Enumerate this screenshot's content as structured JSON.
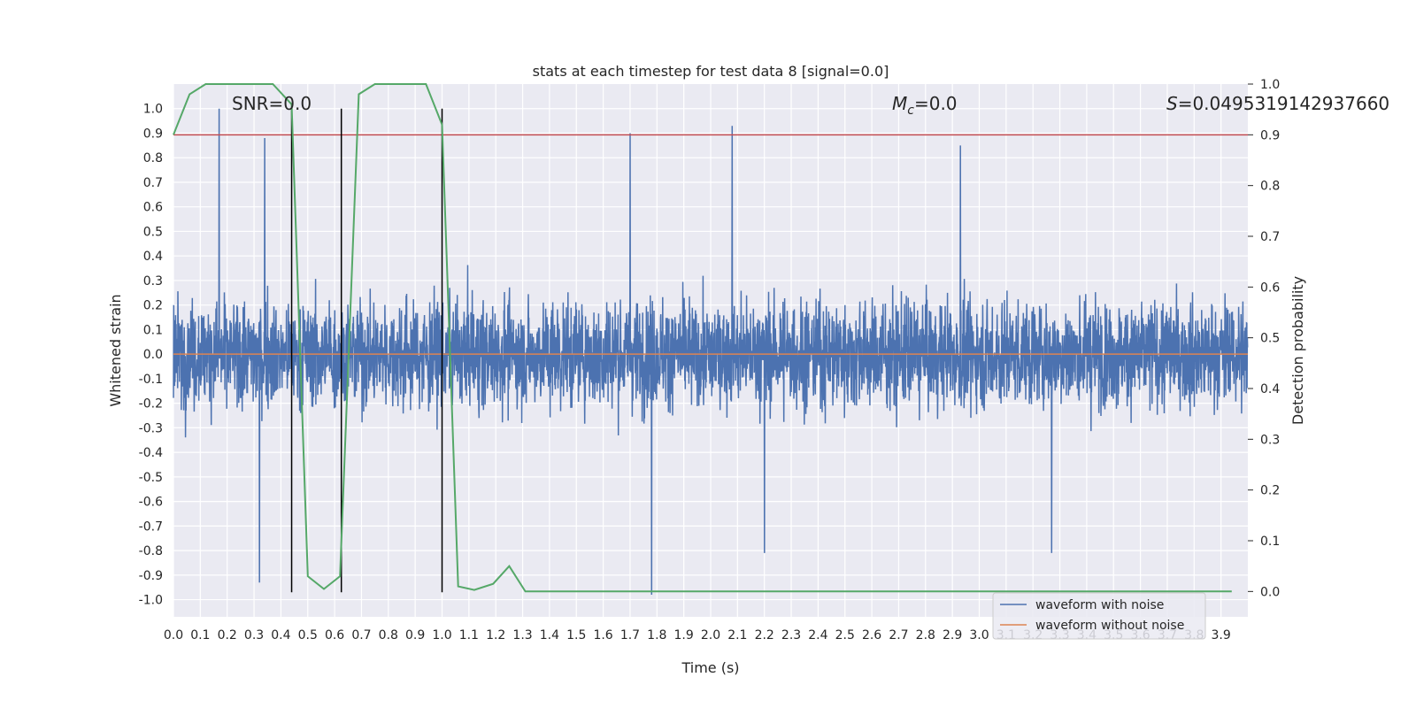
{
  "chart_data": {
    "type": "line",
    "title": "stats at each timestep for test data 8 [signal=0.0]",
    "xlabel": "Time (s)",
    "ylabel": "Whitened strain",
    "y2label": "Detection probability",
    "xlim": [
      0.0,
      4.0
    ],
    "ylim": [
      -1.07,
      1.1
    ],
    "y2lim": [
      -0.05,
      1.0
    ],
    "grid": true,
    "legend_position": "lower-right",
    "x_ticks": [
      "0.0",
      "0.1",
      "0.2",
      "0.3",
      "0.4",
      "0.5",
      "0.6",
      "0.7",
      "0.8",
      "0.9",
      "1.0",
      "1.1",
      "1.2",
      "1.3",
      "1.4",
      "1.5",
      "1.6",
      "1.7",
      "1.8",
      "1.9",
      "2.0",
      "2.1",
      "2.2",
      "2.3",
      "2.4",
      "2.5",
      "2.6",
      "2.7",
      "2.8",
      "2.9",
      "3.0",
      "3.1",
      "3.2",
      "3.3",
      "3.4",
      "3.5",
      "3.6",
      "3.7",
      "3.8",
      "3.9"
    ],
    "y_ticks": [
      "1.0",
      "0.9",
      "0.8",
      "0.7",
      "0.6",
      "0.5",
      "0.4",
      "0.3",
      "0.2",
      "0.1",
      "0.0",
      "-0.1",
      "-0.2",
      "-0.3",
      "-0.4",
      "-0.5",
      "-0.6",
      "-0.7",
      "-0.8",
      "-0.9",
      "-1.0"
    ],
    "y2_ticks": [
      "1.0",
      "0.9",
      "0.8",
      "0.7",
      "0.6",
      "0.5",
      "0.4",
      "0.3",
      "0.2",
      "0.1",
      "0.0"
    ],
    "annotations": [
      {
        "text": "SNR=0.0"
      },
      {
        "text_main": "M",
        "text_sub": "c",
        "text_rest": "=0.0"
      },
      {
        "text_main": "S",
        "text_rest": "=0.0495319142937660"
      }
    ],
    "series": [
      {
        "name": "waveform with noise",
        "color": "#4c72b0",
        "axis": "left",
        "x_range": [
          0.0,
          4.0
        ],
        "samples": 4096,
        "amplitude_envelope": [
          -1.0,
          1.0
        ],
        "notable_peaks": [
          {
            "x": 0.17,
            "y": 1.0
          },
          {
            "x": 0.34,
            "y": 0.88
          },
          {
            "x": 1.7,
            "y": 0.9
          },
          {
            "x": 2.08,
            "y": 0.93
          },
          {
            "x": 2.93,
            "y": 0.85
          },
          {
            "x": 0.32,
            "y": -0.93
          },
          {
            "x": 1.78,
            "y": -0.98
          },
          {
            "x": 2.2,
            "y": -0.81
          },
          {
            "x": 3.27,
            "y": -0.81
          }
        ]
      },
      {
        "name": "waveform without noise",
        "color": "#dd8452",
        "axis": "left",
        "x": [
          0.0,
          4.0
        ],
        "y": [
          0.0,
          0.0
        ]
      },
      {
        "color": "#55a868",
        "axis": "right",
        "x": [
          0.0,
          0.06,
          0.12,
          0.19,
          0.25,
          0.31,
          0.37,
          0.44,
          0.5,
          0.56,
          0.62,
          0.69,
          0.75,
          0.81,
          0.87,
          0.94,
          1.0,
          1.06,
          1.12,
          1.19,
          1.25,
          1.31,
          1.37,
          1.44,
          1.5,
          1.56,
          1.62,
          1.69,
          1.75,
          1.81,
          1.87,
          1.94,
          2.0,
          2.06,
          2.12,
          2.19,
          2.25,
          2.31,
          2.37,
          2.44,
          2.5,
          2.56,
          2.62,
          2.69,
          2.75,
          2.81,
          2.87,
          2.94,
          3.0,
          3.06,
          3.12,
          3.19,
          3.25,
          3.31,
          3.37,
          3.44,
          3.5,
          3.56,
          3.62,
          3.69,
          3.75,
          3.81,
          3.87,
          3.94
        ],
        "y": [
          0.9,
          0.98,
          1.0,
          1.0,
          1.0,
          1.0,
          1.0,
          0.96,
          0.03,
          0.005,
          0.03,
          0.98,
          1.0,
          1.0,
          1.0,
          1.0,
          0.92,
          0.01,
          0.003,
          0.015,
          0.05,
          0.0,
          0.0,
          0.0,
          0.0,
          0.0,
          0.0,
          0.0,
          0.0,
          0.0,
          0.0,
          0.0,
          0.0,
          0.0,
          0.0,
          0.0,
          0.0,
          0.0,
          0.0,
          0.0,
          0.0,
          0.0,
          0.0,
          0.0,
          0.0,
          0.0,
          0.0,
          0.0,
          0.0,
          0.0,
          0.0,
          0.0,
          0.0,
          0.0,
          0.0,
          0.0,
          0.0,
          0.0,
          0.0,
          0.0,
          0.0,
          0.0,
          0.0,
          0.0
        ]
      }
    ],
    "threshold": {
      "axis": "right",
      "value": 0.9,
      "color": "#c44e52"
    },
    "vlines": {
      "x": [
        0.44,
        0.625,
        1.0
      ],
      "ymin": -0.97,
      "ymax": 1.0,
      "color": "#000000"
    }
  }
}
